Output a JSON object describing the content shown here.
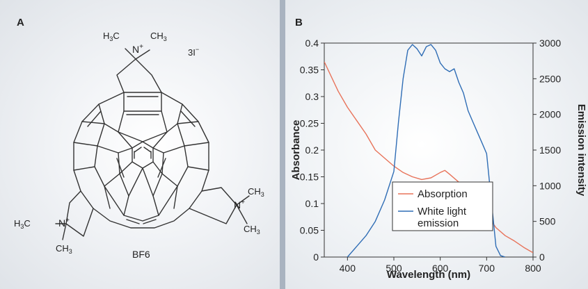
{
  "panel_a": {
    "label": "A",
    "molecule_name": "BF6",
    "counter_ion": "3I",
    "counter_ion_charge": "−",
    "top_group": {
      "methyl_left": "H",
      "methyl_left_c": "C",
      "methyl_right": "CH",
      "n": "N",
      "charge": "+",
      "sub": "3"
    },
    "left_group": {
      "methyl_left": "H",
      "methyl_left_c": "C",
      "n": "N",
      "charge": "+",
      "methyl_bottom": "CH",
      "sub": "3"
    },
    "right_group": {
      "n": "N",
      "charge": "+",
      "methyl_top": "CH",
      "methyl_bottom": "CH",
      "sub": "3"
    }
  },
  "panel_b": {
    "label": "B"
  },
  "colors": {
    "absorption": "#e8735a",
    "emission": "#2f6db5",
    "axis": "#333333",
    "divider": "#a9b3c0"
  },
  "chart_data": {
    "type": "line",
    "xlabel": "Wavelength (nm)",
    "ylabel": "Absorbance",
    "y2label": "Emission intensity",
    "xlim": [
      350,
      800
    ],
    "ylim": [
      0,
      0.4
    ],
    "y2lim": [
      0,
      3000
    ],
    "xticks": [
      "400",
      "500",
      "600",
      "700",
      "800"
    ],
    "yticks": [
      "0",
      "0.05",
      "0.1",
      "0.15",
      "0.2",
      "0.25",
      "0.3",
      "0.35",
      "0.4"
    ],
    "y2ticks": [
      "0",
      "500",
      "1000",
      "1500",
      "2000",
      "2500",
      "3000"
    ],
    "legend_position": "bottom-center",
    "series": [
      {
        "name": "Absorption",
        "axis": "left",
        "color": "#e8735a",
        "x": [
          350,
          380,
          400,
          420,
          440,
          460,
          480,
          500,
          520,
          540,
          560,
          580,
          600,
          610,
          620,
          640,
          660,
          680,
          700,
          720,
          740,
          760,
          780,
          800
        ],
        "y": [
          0.365,
          0.31,
          0.28,
          0.255,
          0.23,
          0.2,
          0.185,
          0.17,
          0.158,
          0.15,
          0.145,
          0.148,
          0.158,
          0.162,
          0.155,
          0.14,
          0.12,
          0.1,
          0.08,
          0.055,
          0.04,
          0.03,
          0.018,
          0.008
        ]
      },
      {
        "name": "White light emission",
        "axis": "right",
        "color": "#2f6db5",
        "x": [
          400,
          420,
          440,
          460,
          480,
          500,
          510,
          520,
          530,
          540,
          550,
          560,
          570,
          580,
          590,
          600,
          610,
          620,
          630,
          640,
          650,
          660,
          670,
          680,
          690,
          700,
          710,
          720,
          730,
          740
        ],
        "y": [
          0,
          150,
          300,
          500,
          800,
          1200,
          1900,
          2500,
          2900,
          2980,
          2920,
          2820,
          2950,
          2980,
          2900,
          2720,
          2640,
          2600,
          2640,
          2450,
          2300,
          2050,
          1900,
          1750,
          1600,
          1450,
          800,
          150,
          20,
          0
        ]
      }
    ],
    "legend": [
      "Absorption",
      "White light",
      "emission"
    ]
  }
}
